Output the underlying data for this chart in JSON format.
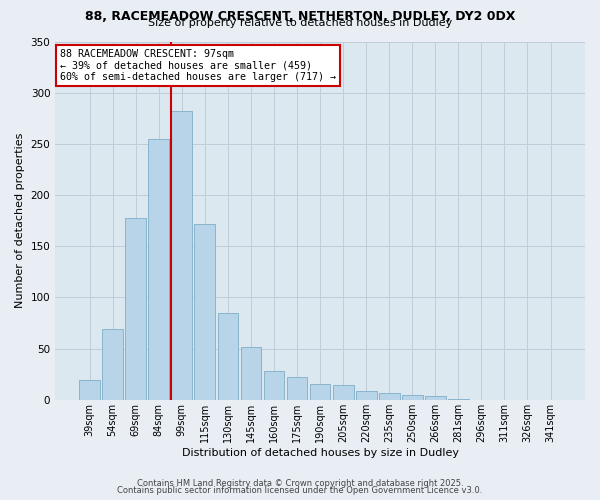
{
  "title_line1": "88, RACEMEADOW CRESCENT, NETHERTON, DUDLEY, DY2 0DX",
  "title_line2": "Size of property relative to detached houses in Dudley",
  "xlabel": "Distribution of detached houses by size in Dudley",
  "ylabel": "Number of detached properties",
  "categories": [
    "39sqm",
    "54sqm",
    "69sqm",
    "84sqm",
    "99sqm",
    "115sqm",
    "130sqm",
    "145sqm",
    "160sqm",
    "175sqm",
    "190sqm",
    "205sqm",
    "220sqm",
    "235sqm",
    "250sqm",
    "266sqm",
    "281sqm",
    "296sqm",
    "311sqm",
    "326sqm",
    "341sqm"
  ],
  "values": [
    19,
    69,
    178,
    255,
    282,
    172,
    85,
    52,
    28,
    22,
    15,
    14,
    9,
    7,
    5,
    4,
    1,
    0,
    0,
    0,
    0
  ],
  "bar_color": "#b8d4e8",
  "bar_edge_color": "#8ab4cc",
  "vline_x_index": 4,
  "vline_color": "#cc0000",
  "annotation_title": "88 RACEMEADOW CRESCENT: 97sqm",
  "annotation_line1": "← 39% of detached houses are smaller (459)",
  "annotation_line2": "60% of semi-detached houses are larger (717) →",
  "annotation_box_color": "#ffffff",
  "annotation_box_edge_color": "#cc0000",
  "ylim": [
    0,
    350
  ],
  "yticks": [
    0,
    50,
    100,
    150,
    200,
    250,
    300,
    350
  ],
  "footer_line1": "Contains HM Land Registry data © Crown copyright and database right 2025.",
  "footer_line2": "Contains public sector information licensed under the Open Government Licence v3.0.",
  "bg_color": "#e8eef4",
  "plot_bg_color": "#dce8f0",
  "grid_color": "#c0ccd8"
}
